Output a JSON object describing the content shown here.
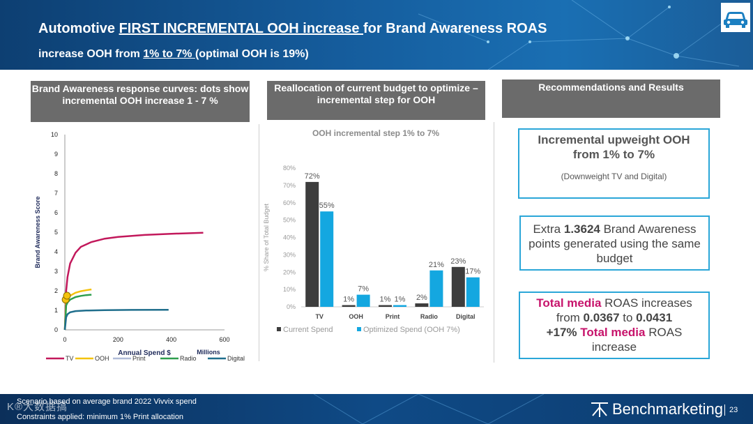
{
  "header": {
    "title_pre": "Automotive ",
    "title_underline": "FIRST INCREMENTAL OOH increase ",
    "title_post": "for Brand Awareness ROAS",
    "subtitle_pre": "increase OOH from ",
    "subtitle_underline": "1% to 7% ",
    "subtitle_post": " (optimal OOH is 19%)",
    "icon": "car-icon"
  },
  "panels": {
    "left_title": "Brand Awareness response curves: dots show incremental OOH increase 1 - 7 %",
    "middle_title": "Reallocation of current budget to optimize – incremental step for OOH",
    "right_title": "Recommendations and Results"
  },
  "results": {
    "box1_title": "Incremental upweight OOH from 1% to 7%",
    "box1_sub": "(Downweight TV and Digital)",
    "box2_pre": "Extra ",
    "box2_bold": "1.3624",
    "box2_post": " Brand Awareness points generated using the same budget",
    "box3_p1": "Total media",
    "box3_p2": " ROAS increases from ",
    "box3_p3": "0.0367",
    "box3_p4": " to ",
    "box3_p5": "0.0431",
    "box3_p6": "+17%  ",
    "box3_p7": "Total media",
    "box3_p8": " ROAS increase"
  },
  "footer": {
    "note1": "Scenario based on average brand 2022  Vivvix spend",
    "note2": "Constraints applied: minimum  1% Print allocation",
    "brand": "Benchmarketing",
    "page": "23",
    "watermark": "K®大数据搞"
  },
  "colors": {
    "tv": "#c2185b",
    "ooh": "#f4c20d",
    "print": "#b0bcd8",
    "radio": "#2e9e4e",
    "digital": "#1f6e8c",
    "current": "#3d3d3d",
    "optimized": "#14a7e0",
    "accent": "#2aa6d8"
  },
  "chart_data": [
    {
      "type": "line",
      "title": "",
      "xlabel": "Annual Spend $",
      "xlabel_unit": "Millions",
      "ylabel": "Brand Awareness Score",
      "xlim": [
        0,
        600
      ],
      "ylim": [
        0,
        10
      ],
      "xticks": [
        "0",
        "200",
        "400",
        "600"
      ],
      "yticks": [
        "0",
        "1",
        "2",
        "3",
        "4",
        "5",
        "6",
        "7",
        "8",
        "9",
        "10"
      ],
      "series": [
        {
          "name": "TV",
          "x": [
            0,
            5,
            10,
            20,
            40,
            60,
            100,
            150,
            200,
            300,
            400,
            520
          ],
          "y": [
            0,
            2.0,
            2.7,
            3.4,
            3.95,
            4.25,
            4.5,
            4.67,
            4.76,
            4.86,
            4.92,
            4.97
          ]
        },
        {
          "name": "OOH",
          "x": [
            0,
            5,
            10,
            20,
            40,
            60,
            80,
            100
          ],
          "y": [
            0,
            1.45,
            1.6,
            1.75,
            1.9,
            1.98,
            2.03,
            2.07
          ]
        },
        {
          "name": "Print",
          "x": [],
          "y": []
        },
        {
          "name": "Radio",
          "x": [
            0,
            5,
            10,
            20,
            40,
            60,
            80,
            100
          ],
          "y": [
            0,
            1.25,
            1.4,
            1.55,
            1.68,
            1.74,
            1.78,
            1.8
          ]
        },
        {
          "name": "Digital",
          "x": [
            0,
            5,
            10,
            20,
            40,
            80,
            150,
            250,
            390
          ],
          "y": [
            0,
            0.65,
            0.8,
            0.9,
            0.96,
            0.99,
            1.01,
            1.02,
            1.03
          ]
        }
      ],
      "markers": [
        {
          "x": 3,
          "y": 1.55
        },
        {
          "x": 8,
          "y": 1.75
        }
      ],
      "legend": [
        "TV",
        "OOH",
        "Print",
        "Radio",
        "Digital"
      ],
      "legend_position": "bottom"
    },
    {
      "type": "bar",
      "title": "OOH incremental step 1% to 7%",
      "ylabel": "% Share of Total Budget",
      "ylim": [
        0,
        80
      ],
      "yticks": [
        "0%",
        "10%",
        "20%",
        "30%",
        "40%",
        "50%",
        "60%",
        "70%",
        "80%"
      ],
      "categories": [
        "TV",
        "OOH",
        "Print",
        "Radio",
        "Digital"
      ],
      "series": [
        {
          "name": "Current Spend",
          "values": [
            72,
            1,
            1,
            2,
            23
          ],
          "labels": [
            "72%",
            "1%",
            "1%",
            "2%",
            "23%"
          ]
        },
        {
          "name": "Optimized Spend (OOH 7%)",
          "values": [
            55,
            7,
            1,
            21,
            17
          ],
          "labels": [
            "55%",
            "7%",
            "1%",
            "21%",
            "17%"
          ]
        }
      ],
      "legend_position": "bottom"
    }
  ]
}
